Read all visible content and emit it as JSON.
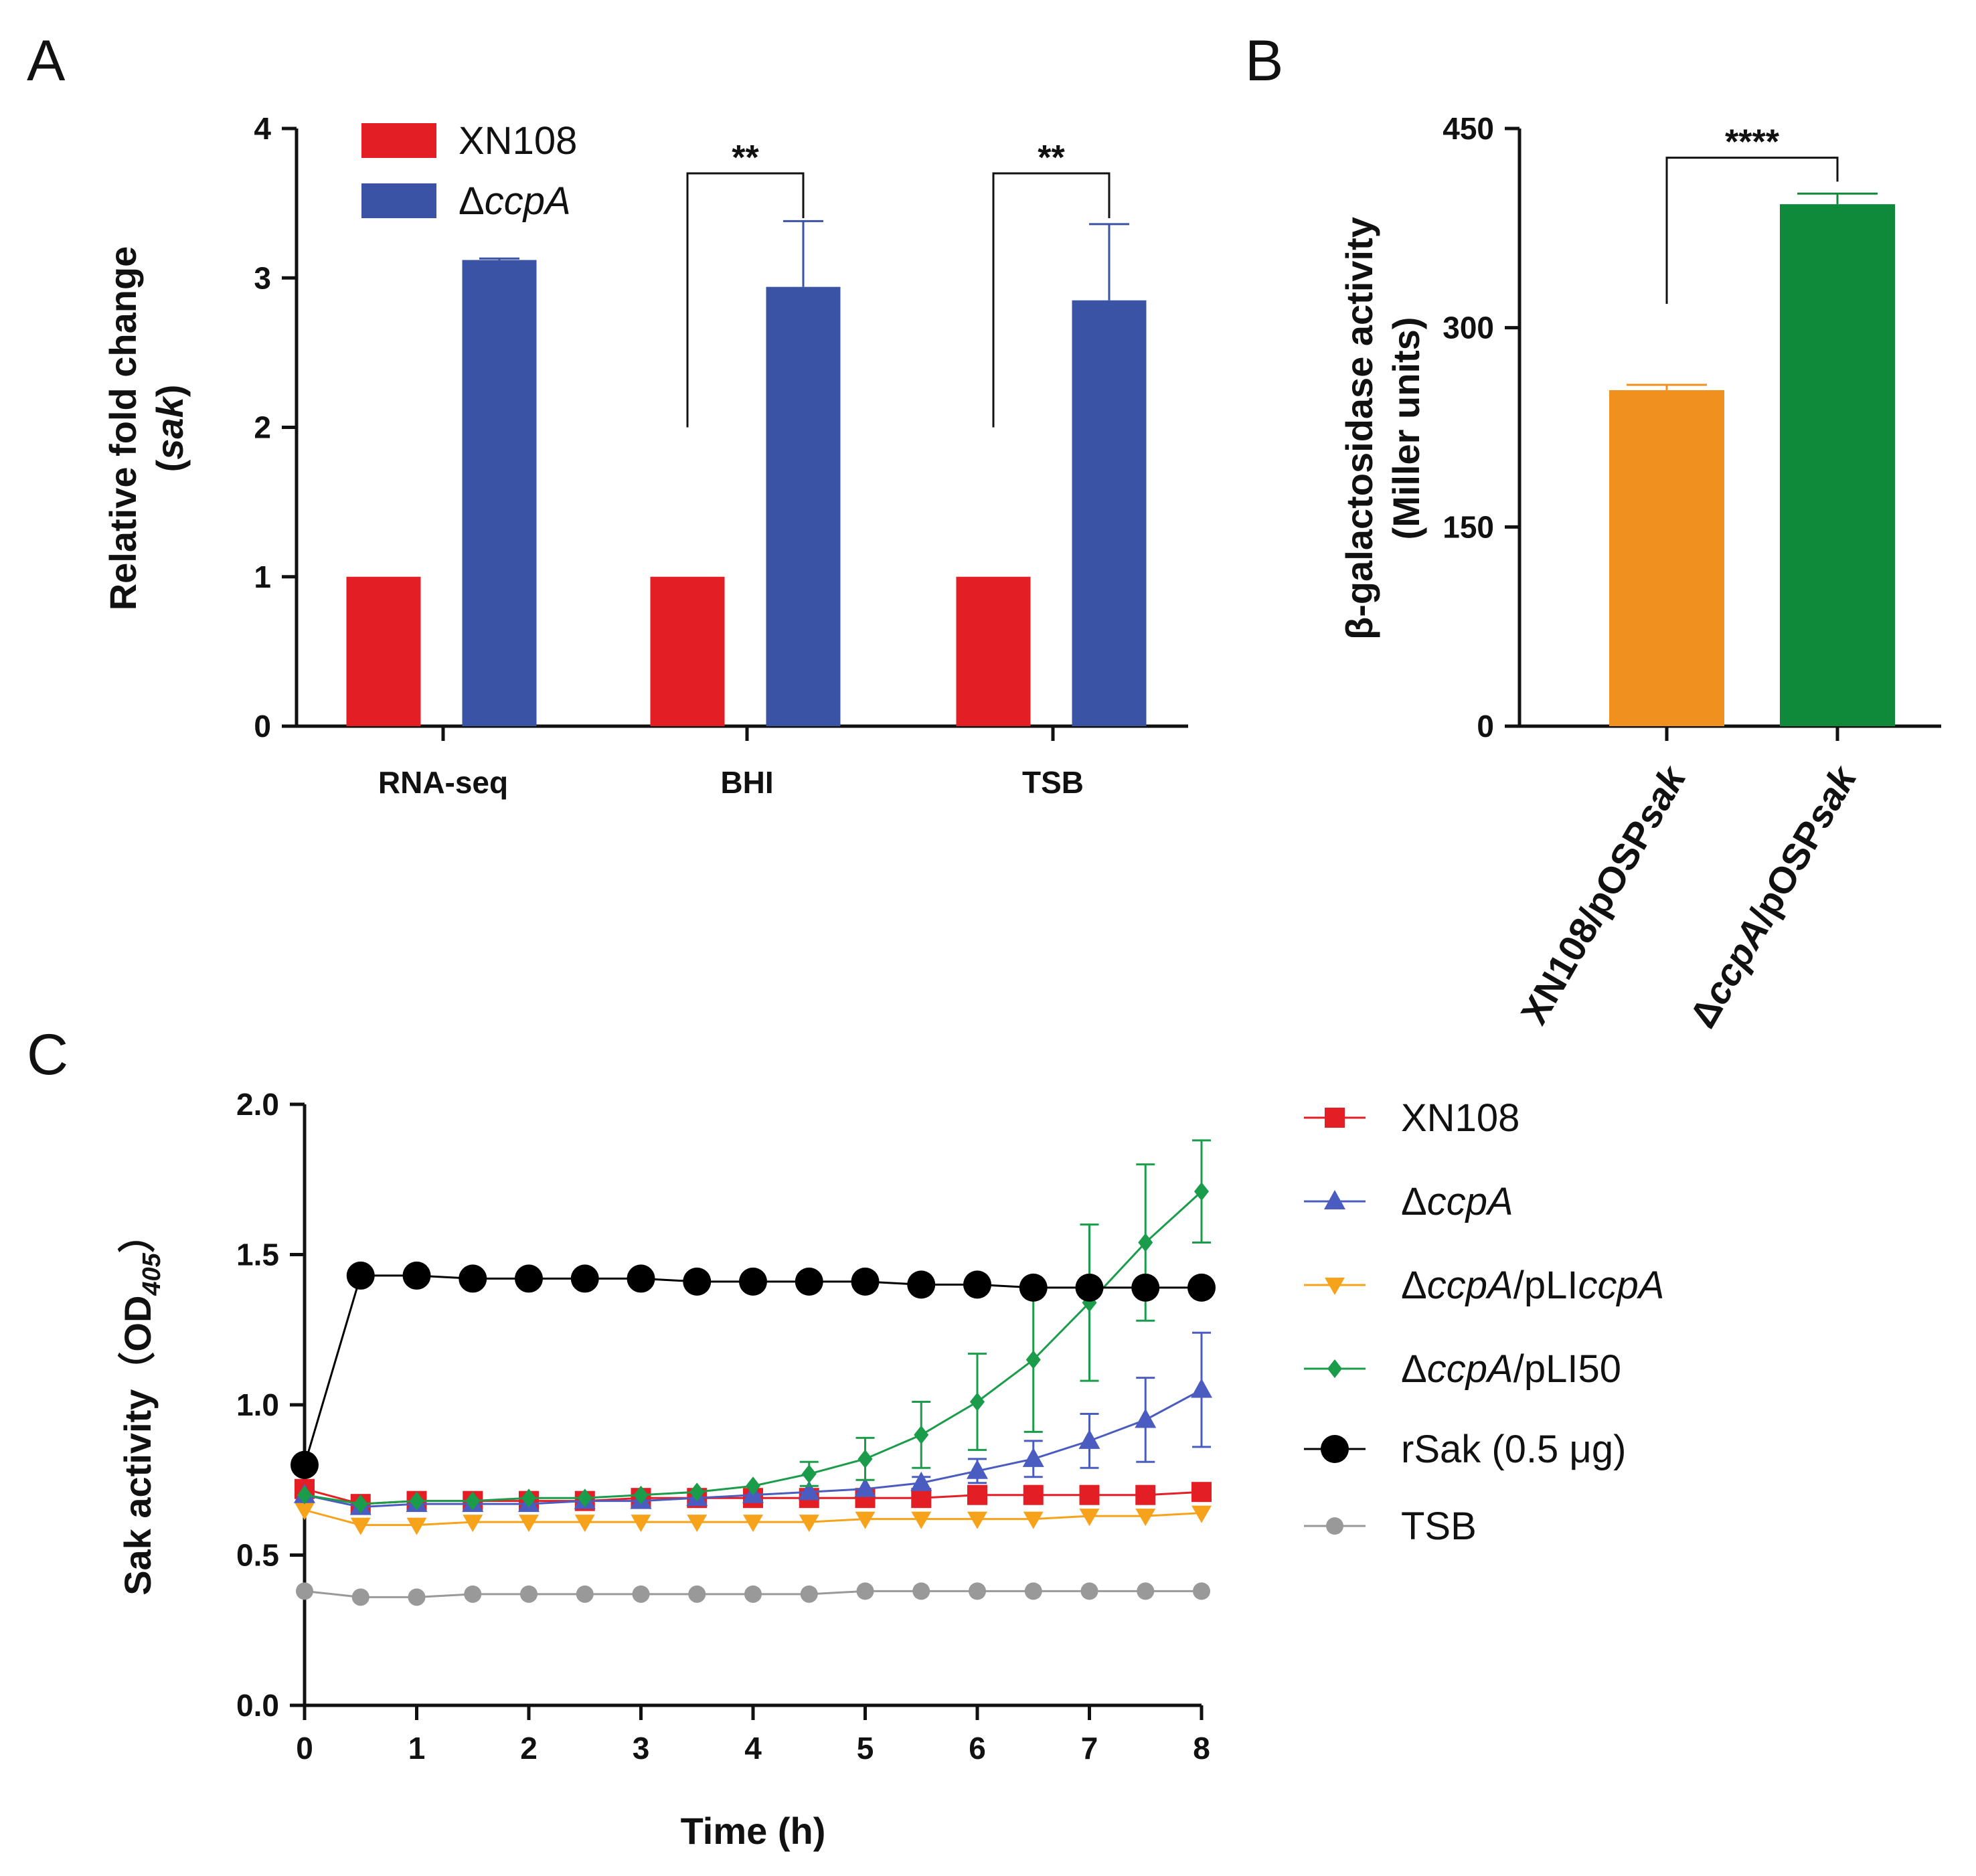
{
  "panels": {
    "a": "A",
    "b": "B",
    "c": "C"
  },
  "chart_data": [
    {
      "panel": "A",
      "type": "bar",
      "categories": [
        "RNA-seq",
        "BHI",
        "TSB"
      ],
      "series": [
        {
          "name": "XN108",
          "values": [
            1,
            1,
            1
          ],
          "errors": [
            0,
            0,
            0
          ],
          "color": "#e31e24"
        },
        {
          "name": "ΔccpA",
          "name_prefix": "Δ",
          "name_italic": "ccpA",
          "values": [
            3.12,
            2.94,
            2.85
          ],
          "errors": [
            0.01,
            0.44,
            0.51
          ],
          "color": "#3a53a4"
        }
      ],
      "ylabel_line1": "Relative fold change",
      "ylabel_line2_open": "(",
      "ylabel_line2_italic": "sak",
      "ylabel_line2_close": ")",
      "ylim": [
        0,
        4
      ],
      "yticks": [
        0,
        1,
        2,
        3,
        4
      ],
      "significance": [
        {
          "category": "BHI",
          "label": "**",
          "y": 3.7
        },
        {
          "category": "TSB",
          "label": "**",
          "y": 3.7
        }
      ],
      "legend": "top-left"
    },
    {
      "panel": "B",
      "type": "bar",
      "categories": [
        "XN108/pOSPsak",
        "ΔccpA/pOSPsak"
      ],
      "values": [
        253,
        393
      ],
      "errors": [
        4,
        8
      ],
      "colors": [
        "#f0901f",
        "#0e8a3a"
      ],
      "category_parts": [
        {
          "plain": "XN108/pOSP",
          "italic": "sak"
        },
        {
          "pre": "Δ",
          "italic1": "ccpA",
          "plain": "/pOSP",
          "italic": "sak"
        }
      ],
      "ylabel_line1": "β-galactosidase activity",
      "ylabel_line2": "(Miller units)",
      "ylim": [
        0,
        450
      ],
      "yticks": [
        0,
        150,
        300,
        450
      ],
      "significance": [
        {
          "label": "****",
          "y": 428
        }
      ]
    },
    {
      "panel": "C",
      "type": "line",
      "xlabel": "Time (h)",
      "ylabel_main": "Sak activity",
      "ylabel_open": "（OD",
      "ylabel_sub": "405",
      "ylabel_close": "）",
      "xlim": [
        0,
        8
      ],
      "ylim": [
        0,
        2.0
      ],
      "xticks": [
        0,
        1,
        2,
        3,
        4,
        5,
        6,
        7,
        8
      ],
      "yticks": [
        "0.0",
        "0.5",
        "1.0",
        "1.5",
        "2.0"
      ],
      "x": [
        0,
        0.5,
        1,
        1.5,
        2,
        2.5,
        3,
        3.5,
        4,
        4.5,
        5,
        5.5,
        6,
        6.5,
        7,
        7.5,
        8
      ],
      "series": [
        {
          "name": "XN108",
          "label_plain": "XN108",
          "color": "#e31e24",
          "marker": "square",
          "values": [
            0.72,
            0.67,
            0.68,
            0.68,
            0.68,
            0.68,
            0.69,
            0.69,
            0.69,
            0.69,
            0.69,
            0.69,
            0.7,
            0.7,
            0.7,
            0.7,
            0.71
          ]
        },
        {
          "name": "ΔccpA",
          "label_pre": "Δ",
          "label_italic": "ccpA",
          "color": "#4a5cc0",
          "marker": "triangle-up",
          "values": [
            0.7,
            0.66,
            0.67,
            0.67,
            0.67,
            0.68,
            0.68,
            0.69,
            0.7,
            0.71,
            0.72,
            0.74,
            0.78,
            0.82,
            0.88,
            0.95,
            1.05
          ],
          "errors": [
            0,
            0,
            0,
            0,
            0,
            0,
            0,
            0,
            0,
            0,
            0,
            0.02,
            0.04,
            0.06,
            0.09,
            0.14,
            0.19
          ]
        },
        {
          "name": "ΔccpA/pLIccpA",
          "label_pre": "Δ",
          "label_italic": "ccpA",
          "label_plain": "/pLI",
          "label_italic2": "ccpA",
          "color": "#f7a21b",
          "marker": "triangle-down",
          "values": [
            0.65,
            0.6,
            0.6,
            0.61,
            0.61,
            0.61,
            0.61,
            0.61,
            0.61,
            0.61,
            0.62,
            0.62,
            0.62,
            0.62,
            0.63,
            0.63,
            0.64
          ]
        },
        {
          "name": "ΔccpA/pLI50",
          "label_pre": "Δ",
          "label_italic": "ccpA",
          "label_plain": "/pLI50",
          "color": "#1a9c4a",
          "marker": "diamond",
          "values": [
            0.7,
            0.67,
            0.68,
            0.68,
            0.69,
            0.69,
            0.7,
            0.71,
            0.73,
            0.77,
            0.82,
            0.9,
            1.01,
            1.15,
            1.34,
            1.54,
            1.71
          ],
          "errors": [
            0,
            0,
            0,
            0,
            0,
            0,
            0,
            0,
            0,
            0.04,
            0.07,
            0.11,
            0.16,
            0.24,
            0.26,
            0.26,
            0.17
          ]
        },
        {
          "name": "rSak (0.5 μg)",
          "label_plain": "rSak (0.5 μg)",
          "color": "#000000",
          "marker": "circle-large",
          "values": [
            0.8,
            1.43,
            1.43,
            1.42,
            1.42,
            1.42,
            1.42,
            1.41,
            1.41,
            1.41,
            1.41,
            1.4,
            1.4,
            1.39,
            1.39,
            1.39,
            1.39
          ]
        },
        {
          "name": "TSB",
          "label_plain": "TSB",
          "color": "#999999",
          "marker": "circle",
          "values": [
            0.38,
            0.36,
            0.36,
            0.37,
            0.37,
            0.37,
            0.37,
            0.37,
            0.37,
            0.37,
            0.38,
            0.38,
            0.38,
            0.38,
            0.38,
            0.38,
            0.38
          ]
        }
      ],
      "legend": "right"
    }
  ]
}
